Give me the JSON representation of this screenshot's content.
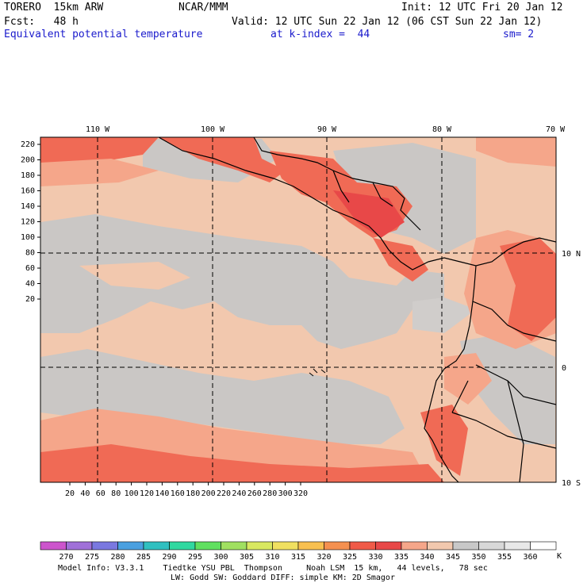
{
  "header": {
    "model": "TORERO  15km ARW",
    "org": "NCAR/MMM",
    "init": "Init: 12 UTC Fri 20 Jan 12",
    "fcst": "Fcst:   48 h",
    "valid": "Valid: 12 UTC Sun 22 Jan 12 (06 CST Sun 22 Jan 12)",
    "field": "Equivalent potential temperature",
    "level": "at k-index =  44",
    "smooth": "sm= 2"
  },
  "map": {
    "top_lon_labels": [
      "110 W",
      "100 W",
      "90 W",
      "80 W",
      "70 W"
    ],
    "right_lat_labels": [
      "10 N",
      "0",
      "10 S"
    ],
    "left_y_ticks": [
      "220",
      "200",
      "180",
      "160",
      "140",
      "120",
      "100",
      "80",
      "60",
      "40",
      "20"
    ],
    "bottom_x_ticks": [
      "20",
      "40",
      "60",
      "80",
      "100",
      "120",
      "140",
      "160",
      "180",
      "200",
      "220",
      "240",
      "260",
      "280",
      "300",
      "320"
    ]
  },
  "legend": {
    "levels": [
      "270",
      "275",
      "280",
      "285",
      "290",
      "295",
      "300",
      "305",
      "310",
      "315",
      "320",
      "325",
      "330",
      "335",
      "340",
      "345",
      "350",
      "355",
      "360"
    ],
    "unit": "K",
    "colors": [
      "#cc55cc",
      "#a070d8",
      "#7a78e0",
      "#4aa0e0",
      "#30c0c0",
      "#30d8a0",
      "#60e060",
      "#a0e060",
      "#d8e860",
      "#f0e060",
      "#f8c050",
      "#f49050",
      "#f05a48",
      "#e84848",
      "#f5a68a",
      "#f2c8ae",
      "#c8c8c8",
      "#d8d8d8",
      "#e8e8e8",
      "#ffffff"
    ]
  },
  "footer": {
    "line1": "Model Info: V3.3.1    Tiedtke YSU PBL  Thompson     Noah LSM  15 km,   44 levels,   78 sec",
    "line2": "LW: Godd SW: Goddard DIFF: simple KM: 2D Smagor"
  }
}
